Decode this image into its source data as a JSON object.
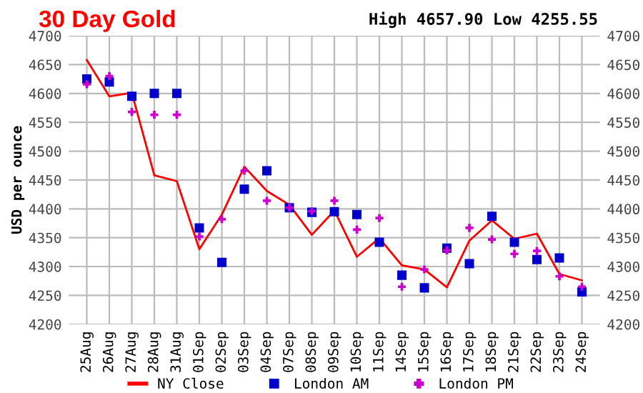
{
  "chart_data": {
    "type": "line",
    "title": "30 Day Gold",
    "subtitle": "High 4657.90 Low 4255.55",
    "ylabel": "USD per ounce",
    "categories": [
      "25Aug",
      "26Aug",
      "27Aug",
      "28Aug",
      "31Aug",
      "01Sep",
      "02Sep",
      "03Sep",
      "04Sep",
      "07Sep",
      "08Sep",
      "09Sep",
      "10Sep",
      "11Sep",
      "14Sep",
      "15Sep",
      "16Sep",
      "17Sep",
      "18Sep",
      "21Sep",
      "22Sep",
      "23Sep",
      "24Sep"
    ],
    "series": [
      {
        "name": "NY Close",
        "color": "#ff0000",
        "marker": "none",
        "values": [
          4658,
          4595,
          4601,
          4458,
          4448,
          4330,
          4390,
          4473,
          4431,
          4407,
          4355,
          4397,
          4317,
          4349,
          4302,
          4295,
          4264,
          4345,
          4380,
          4348,
          4357,
          4287,
          4276
        ]
      },
      {
        "name": "London AM",
        "type": "scatter",
        "color": "#0000cc",
        "marker": "square",
        "values": [
          4625,
          4620,
          4595,
          4600,
          4600,
          4367,
          4307,
          4434,
          4466,
          4402,
          4394,
          4395,
          4390,
          4342,
          4285,
          4263,
          4332,
          4305,
          4387,
          4342,
          4312,
          4315,
          4256
        ]
      },
      {
        "name": "London PM",
        "type": "scatter",
        "color": "#cc00cc",
        "marker": "cross",
        "values": [
          4616,
          4630,
          4568,
          4563,
          4563,
          4352,
          4382,
          4466,
          4414,
          4402,
          4396,
          4414,
          4364,
          4384,
          4265,
          4295,
          4328,
          4367,
          4347,
          4322,
          4327,
          4283,
          4265
        ]
      }
    ],
    "ylim": [
      4200,
      4700
    ],
    "yticks": [
      4200,
      4250,
      4300,
      4350,
      4400,
      4450,
      4500,
      4550,
      4600,
      4650,
      4700
    ],
    "y2lim": [
      4200,
      4700
    ],
    "y2ticks": [
      4200,
      4250,
      4300,
      4350,
      4400,
      4450,
      4500,
      4550,
      4600,
      4650,
      4700
    ],
    "grid": true,
    "legend": "bottom"
  }
}
